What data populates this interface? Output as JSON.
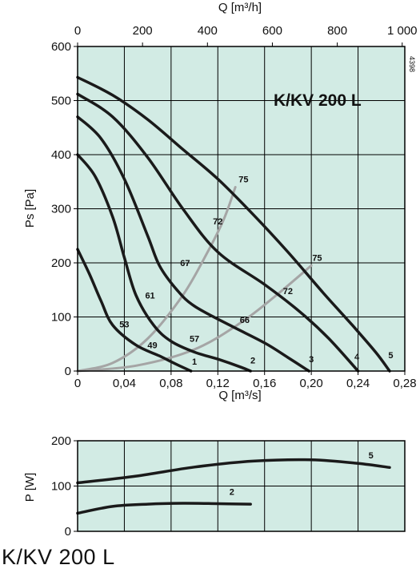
{
  "caption": "K/KV 200 L",
  "chart_data": [
    {
      "type": "line",
      "title": "K/KV 200 L",
      "code": "4398",
      "xlabel": "Q [m³/s]",
      "x2label": "Q [m³/h]",
      "ylabel": "Ps [Pa]",
      "xlim": [
        0,
        0.28
      ],
      "x2lim": [
        0,
        1008
      ],
      "ylim": [
        0,
        600
      ],
      "xticks": [
        "0",
        "0,04",
        "0,08",
        "0,12",
        "0,16",
        "0,20",
        "0,24",
        "0,28"
      ],
      "x2ticks": [
        "0",
        "200",
        "400",
        "600",
        "800",
        "1 000"
      ],
      "yticks": [
        "0",
        "100",
        "200",
        "300",
        "400",
        "500",
        "600"
      ],
      "grid": true,
      "background": "#d2ebe4",
      "curve_color": "#1a1a1a",
      "efficiency_color": "#a5a5a5",
      "series": [
        {
          "name": "1",
          "x": [
            0,
            0.01,
            0.02,
            0.03,
            0.05,
            0.07,
            0.085,
            0.097
          ],
          "y": [
            225,
            180,
            130,
            85,
            48,
            28,
            12,
            0
          ]
        },
        {
          "name": "2",
          "x": [
            0,
            0.015,
            0.03,
            0.04,
            0.05,
            0.065,
            0.08,
            0.1,
            0.12,
            0.14,
            0.148
          ],
          "y": [
            400,
            360,
            285,
            210,
            140,
            85,
            55,
            35,
            22,
            7,
            0
          ]
        },
        {
          "name": "3",
          "x": [
            0,
            0.02,
            0.04,
            0.06,
            0.07,
            0.085,
            0.1,
            0.13,
            0.16,
            0.18,
            0.198
          ],
          "y": [
            470,
            430,
            355,
            250,
            195,
            150,
            120,
            85,
            52,
            25,
            0
          ]
        },
        {
          "name": "4",
          "x": [
            0,
            0.03,
            0.06,
            0.09,
            0.12,
            0.16,
            0.19,
            0.215,
            0.24
          ],
          "y": [
            512,
            470,
            395,
            300,
            220,
            160,
            110,
            60,
            0
          ]
        },
        {
          "name": "5",
          "x": [
            0,
            0.03,
            0.06,
            0.09,
            0.12,
            0.15,
            0.18,
            0.21,
            0.235,
            0.255,
            0.267
          ],
          "y": [
            543,
            510,
            465,
            410,
            355,
            290,
            220,
            145,
            85,
            35,
            0
          ]
        }
      ],
      "efficiency_curves": [
        {
          "x": [
            0,
            0.03,
            0.06,
            0.09,
            0.11,
            0.125,
            0.135
          ],
          "y": [
            0,
            15,
            60,
            140,
            215,
            280,
            340
          ]
        },
        {
          "x": [
            0,
            0.05,
            0.1,
            0.14,
            0.17,
            0.2
          ],
          "y": [
            0,
            10,
            40,
            90,
            140,
            195
          ]
        }
      ],
      "curve_labels": [
        {
          "text": "1",
          "x": 0.1,
          "y": 18
        },
        {
          "text": "2",
          "x": 0.15,
          "y": 20
        },
        {
          "text": "3",
          "x": 0.2,
          "y": 22
        },
        {
          "text": "4",
          "x": 0.239,
          "y": 27
        },
        {
          "text": "5",
          "x": 0.268,
          "y": 30
        },
        {
          "text": "53",
          "x": 0.04,
          "y": 87
        },
        {
          "text": "49",
          "x": 0.064,
          "y": 48
        },
        {
          "text": "57",
          "x": 0.1,
          "y": 60
        },
        {
          "text": "61",
          "x": 0.062,
          "y": 140
        },
        {
          "text": "67",
          "x": 0.092,
          "y": 200
        },
        {
          "text": "66",
          "x": 0.143,
          "y": 95
        },
        {
          "text": "72",
          "x": 0.12,
          "y": 277
        },
        {
          "text": "72",
          "x": 0.18,
          "y": 148
        },
        {
          "text": "75",
          "x": 0.142,
          "y": 355
        },
        {
          "text": "75",
          "x": 0.205,
          "y": 210
        }
      ]
    },
    {
      "type": "line",
      "ylabel": "P [W]",
      "xlim": [
        0,
        0.28
      ],
      "ylim": [
        0,
        200
      ],
      "yticks": [
        "0",
        "100",
        "200"
      ],
      "grid": true,
      "background": "#d2ebe4",
      "series": [
        {
          "name": "5",
          "x": [
            0,
            0.05,
            0.1,
            0.15,
            0.2,
            0.24,
            0.267
          ],
          "y": [
            107,
            122,
            142,
            155,
            158,
            150,
            141
          ]
        },
        {
          "name": "2",
          "x": [
            0,
            0.03,
            0.06,
            0.09,
            0.12,
            0.148
          ],
          "y": [
            40,
            55,
            60,
            62,
            61,
            60
          ]
        }
      ],
      "curve_labels": [
        {
          "text": "5",
          "x": 0.251,
          "y": 168
        },
        {
          "text": "2",
          "x": 0.132,
          "y": 88
        }
      ]
    }
  ]
}
